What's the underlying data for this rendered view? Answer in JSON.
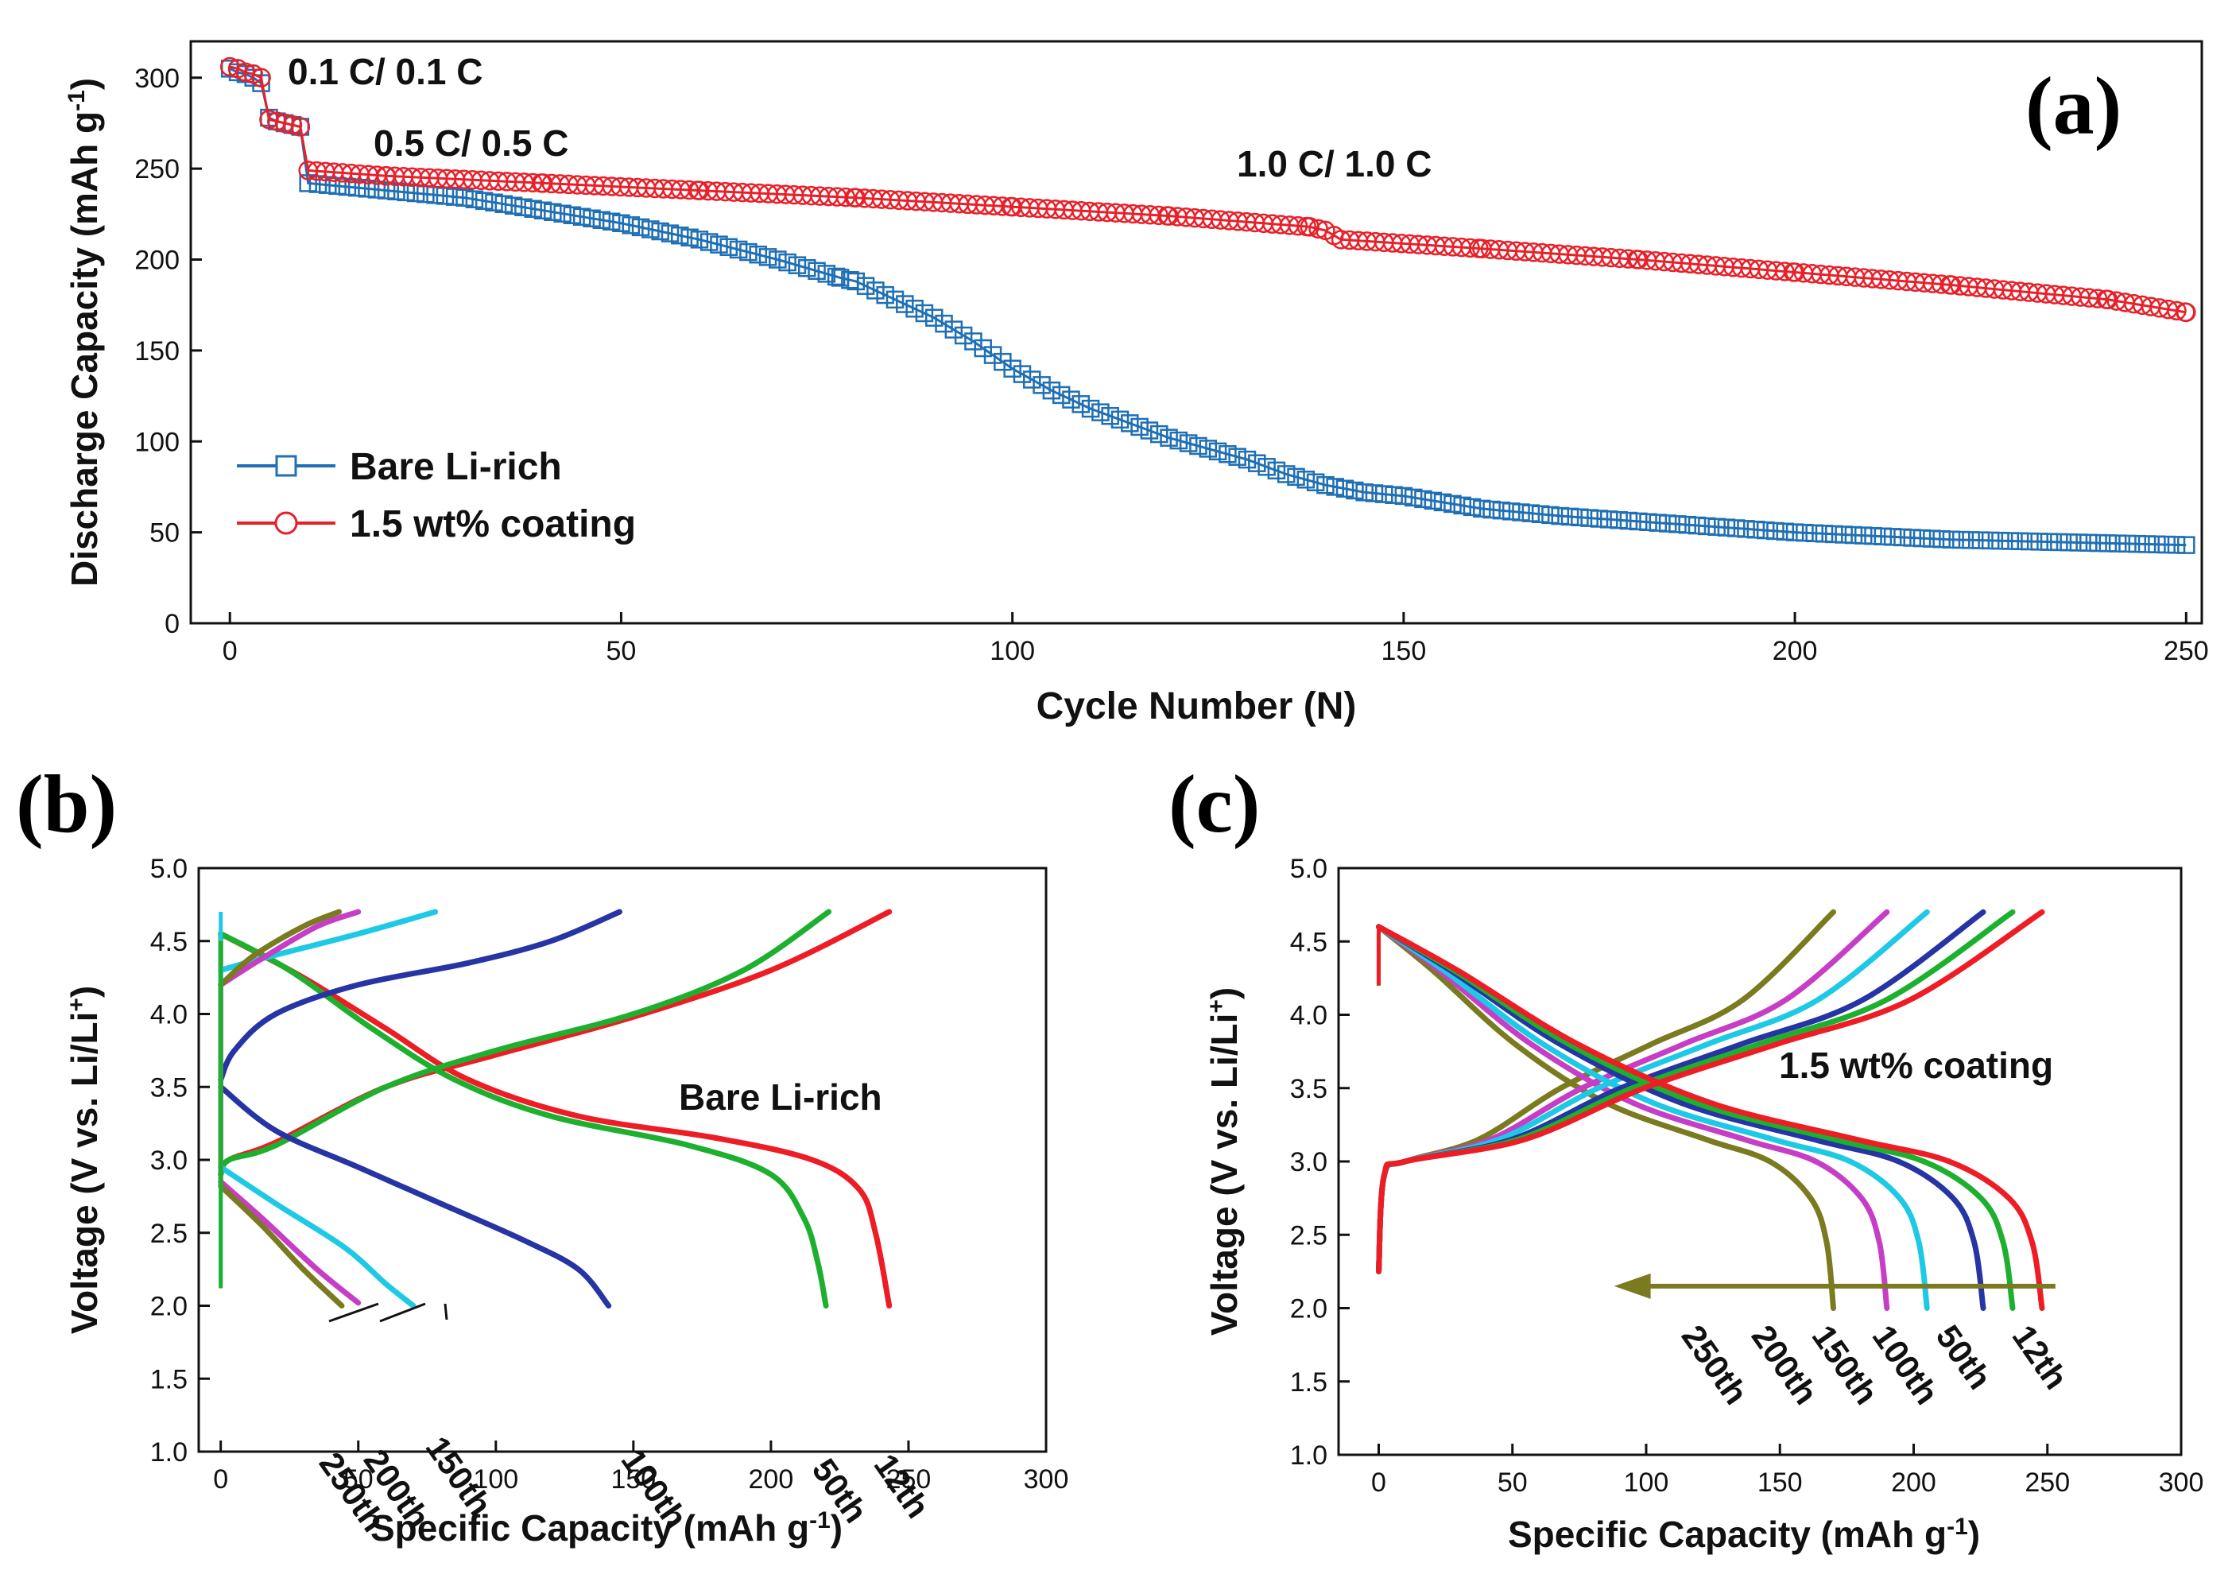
{
  "chart_data": [
    {
      "id": "a",
      "type": "scatter",
      "panel_label": "(a)",
      "xlabel": "Cycle Number (N)",
      "ylabel": "Discharge Capacity (mAh g",
      "ylabel_sup": "-1",
      "ylabel_end": ")",
      "xlim": [
        -5,
        252
      ],
      "ylim": [
        0,
        320
      ],
      "xticks": [
        0,
        50,
        100,
        150,
        200,
        250
      ],
      "yticks": [
        0,
        50,
        100,
        150,
        200,
        250,
        300
      ],
      "legend_position": "bottom-left",
      "annotations": [
        "0.1 C/ 0.1 C",
        "0.5 C/ 0.5 C",
        "1.0 C/ 1.0 C"
      ],
      "series": [
        {
          "name": "Bare Li-rich",
          "color": "#1f6fb4",
          "marker": "square",
          "points": [
            [
              0,
              305
            ],
            [
              1,
              303
            ],
            [
              2,
              302
            ],
            [
              3,
              300
            ],
            [
              4,
              297
            ],
            [
              5,
              278
            ],
            [
              6,
              276
            ],
            [
              7,
              275
            ],
            [
              8,
              274
            ],
            [
              9,
              273
            ],
            [
              10,
              242
            ],
            [
              15,
              240
            ],
            [
              20,
              238
            ],
            [
              30,
              234
            ],
            [
              40,
              227
            ],
            [
              50,
              220
            ],
            [
              60,
              211
            ],
            [
              70,
              200
            ],
            [
              78,
              190
            ],
            [
              80,
              188
            ],
            [
              85,
              178
            ],
            [
              90,
              168
            ],
            [
              95,
              155
            ],
            [
              100,
              140
            ],
            [
              105,
              128
            ],
            [
              110,
              118
            ],
            [
              115,
              110
            ],
            [
              120,
              102
            ],
            [
              125,
              96
            ],
            [
              130,
              90
            ],
            [
              135,
              82
            ],
            [
              140,
              76
            ],
            [
              145,
              72
            ],
            [
              150,
              70
            ],
            [
              160,
              63
            ],
            [
              170,
              59
            ],
            [
              180,
              56
            ],
            [
              190,
              53
            ],
            [
              200,
              50
            ],
            [
              210,
              48
            ],
            [
              220,
              46
            ],
            [
              230,
              45
            ],
            [
              240,
              44
            ],
            [
              250,
              43
            ]
          ]
        },
        {
          "name": "1.5 wt% coating",
          "color": "#e8202a",
          "marker": "circle",
          "points": [
            [
              0,
              306
            ],
            [
              1,
              305
            ],
            [
              2,
              303
            ],
            [
              3,
              302
            ],
            [
              4,
              300
            ],
            [
              5,
              277
            ],
            [
              6,
              276
            ],
            [
              7,
              275
            ],
            [
              8,
              274
            ],
            [
              9,
              273
            ],
            [
              10,
              249
            ],
            [
              20,
              246
            ],
            [
              40,
              242
            ],
            [
              60,
              238
            ],
            [
              80,
              234
            ],
            [
              100,
              229
            ],
            [
              120,
              224
            ],
            [
              138,
              218
            ],
            [
              140,
              216
            ],
            [
              142,
              211
            ],
            [
              160,
              206
            ],
            [
              180,
              200
            ],
            [
              200,
              193
            ],
            [
              220,
              186
            ],
            [
              240,
              178
            ],
            [
              250,
              171
            ]
          ]
        }
      ]
    },
    {
      "id": "b",
      "type": "line",
      "panel_label": "(b)",
      "xlabel": "Specific Capacity (mAh g",
      "xlabel_sup": "-1",
      "xlabel_end": ")",
      "ylabel": "Voltage (V vs. Li/Li",
      "ylabel_sup": "+",
      "ylabel_end": ")",
      "xlim": [
        -8,
        300
      ],
      "ylim": [
        1.0,
        5.0
      ],
      "xticks": [
        0,
        50,
        100,
        150,
        200,
        250,
        300
      ],
      "yticks": [
        1.0,
        1.5,
        2.0,
        2.5,
        3.0,
        3.5,
        4.0,
        4.5,
        5.0
      ],
      "title_in_plot": "Bare Li-rich",
      "series": [
        {
          "name": "12th",
          "color": "#ee1c25",
          "charge": [
            [
              0,
              2.9
            ],
            [
              3,
              3.0
            ],
            [
              20,
              3.12
            ],
            [
              60,
              3.5
            ],
            [
              100,
              3.72
            ],
            [
              150,
              3.98
            ],
            [
              200,
              4.3
            ],
            [
              243,
              4.7
            ]
          ],
          "discharge": [
            [
              0,
              4.55
            ],
            [
              30,
              4.25
            ],
            [
              60,
              3.9
            ],
            [
              90,
              3.55
            ],
            [
              130,
              3.3
            ],
            [
              180,
              3.15
            ],
            [
              215,
              3.0
            ],
            [
              232,
              2.8
            ],
            [
              238,
              2.5
            ],
            [
              243,
              2.0
            ]
          ]
        },
        {
          "name": "50th",
          "color": "#1db02e",
          "charge": [
            [
              0,
              2.9
            ],
            [
              3,
              3.0
            ],
            [
              20,
              3.1
            ],
            [
              60,
              3.5
            ],
            [
              100,
              3.75
            ],
            [
              150,
              4.0
            ],
            [
              190,
              4.3
            ],
            [
              221,
              4.7
            ]
          ],
          "discharge": [
            [
              0,
              4.55
            ],
            [
              25,
              4.3
            ],
            [
              55,
              3.9
            ],
            [
              85,
              3.55
            ],
            [
              120,
              3.3
            ],
            [
              170,
              3.1
            ],
            [
              200,
              2.9
            ],
            [
              212,
              2.6
            ],
            [
              217,
              2.3
            ],
            [
              220,
              2.0
            ]
          ]
        },
        {
          "name": "100th",
          "color": "#2634a4",
          "charge": [
            [
              0,
              3.55
            ],
            [
              5,
              3.75
            ],
            [
              20,
              4.0
            ],
            [
              50,
              4.2
            ],
            [
              90,
              4.35
            ],
            [
              120,
              4.5
            ],
            [
              145,
              4.7
            ]
          ],
          "discharge": [
            [
              0,
              3.5
            ],
            [
              20,
              3.2
            ],
            [
              50,
              2.95
            ],
            [
              80,
              2.7
            ],
            [
              110,
              2.45
            ],
            [
              130,
              2.25
            ],
            [
              141,
              2.0
            ]
          ]
        },
        {
          "name": "150th",
          "color": "#1ec9e6",
          "charge": [
            [
              0,
              4.3
            ],
            [
              15,
              4.38
            ],
            [
              50,
              4.55
            ],
            [
              78,
              4.7
            ]
          ],
          "discharge": [
            [
              0,
              2.95
            ],
            [
              20,
              2.7
            ],
            [
              45,
              2.4
            ],
            [
              60,
              2.15
            ],
            [
              70,
              2.0
            ]
          ]
        },
        {
          "name": "200th",
          "color": "#c63ec6",
          "charge": [
            [
              0,
              4.2
            ],
            [
              15,
              4.38
            ],
            [
              35,
              4.6
            ],
            [
              50,
              4.7
            ]
          ],
          "discharge": [
            [
              0,
              2.85
            ],
            [
              15,
              2.6
            ],
            [
              35,
              2.25
            ],
            [
              50,
              2.02
            ]
          ]
        },
        {
          "name": "250th",
          "color": "#7a7a1e",
          "charge": [
            [
              0,
              4.2
            ],
            [
              12,
              4.4
            ],
            [
              30,
              4.6
            ],
            [
              43,
              4.7
            ]
          ],
          "discharge": [
            [
              0,
              2.82
            ],
            [
              15,
              2.55
            ],
            [
              30,
              2.25
            ],
            [
              44,
              2.0
            ]
          ]
        }
      ],
      "cycle_labels": [
        "12th",
        "50th",
        "100th",
        "150th",
        "200th",
        "250th"
      ]
    },
    {
      "id": "c",
      "type": "line",
      "panel_label": "(c)",
      "xlabel": "Specific Capacity (mAh g",
      "xlabel_sup": "-1",
      "xlabel_end": ")",
      "ylabel": "Voltage (V vs. Li/Li",
      "ylabel_sup": "+",
      "ylabel_end": ")",
      "xlim": [
        -15,
        300
      ],
      "ylim": [
        1.0,
        5.0
      ],
      "xticks": [
        0,
        50,
        100,
        150,
        200,
        250,
        300
      ],
      "yticks": [
        1.0,
        1.5,
        2.0,
        2.5,
        3.0,
        3.5,
        4.0,
        4.5,
        5.0
      ],
      "title_in_plot": "1.5 wt% coating",
      "series": [
        {
          "name": "12th",
          "color": "#ee1c25",
          "cap": 248
        },
        {
          "name": "50th",
          "color": "#1db02e",
          "cap": 237
        },
        {
          "name": "100th",
          "color": "#2634a4",
          "cap": 226
        },
        {
          "name": "150th",
          "color": "#1ec9e6",
          "cap": 205
        },
        {
          "name": "200th",
          "color": "#c63ec6",
          "cap": 190
        },
        {
          "name": "250th",
          "color": "#7a7a1e",
          "cap": 170
        }
      ],
      "cycle_labels": [
        "250th",
        "200th",
        "150th",
        "100th",
        "50th",
        "12th"
      ],
      "arrow": {
        "from": [
          253,
          2.15
        ],
        "to": [
          88,
          2.15
        ],
        "color": "#7a7a1e"
      }
    }
  ]
}
